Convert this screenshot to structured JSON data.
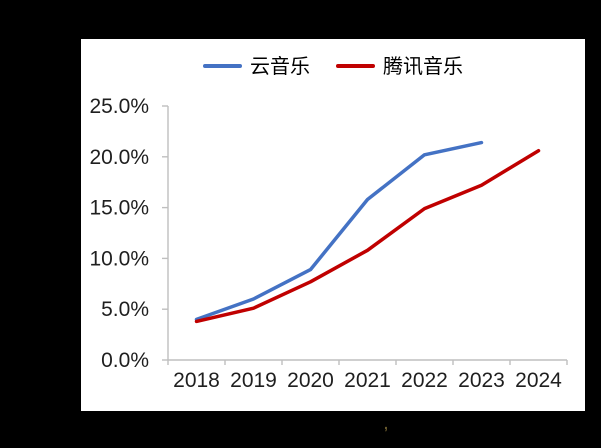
{
  "page": {
    "background_color": "#000000",
    "panel_color": "#FFFFFF"
  },
  "watermark": {
    "glyph": ",",
    "color": "#6A5B2D"
  },
  "chart_data": {
    "type": "line",
    "title": "",
    "categories": [
      "2018",
      "2019",
      "2020",
      "2021",
      "2022",
      "2023",
      "2024"
    ],
    "series": [
      {
        "name": "云音乐",
        "color": "#4472C4",
        "values": [
          4.0,
          6.0,
          8.9,
          15.8,
          20.2,
          21.4,
          null
        ]
      },
      {
        "name": "腾讯音乐",
        "color": "#C00000",
        "values": [
          3.8,
          5.1,
          7.7,
          10.8,
          14.9,
          17.2,
          20.6
        ]
      }
    ],
    "xlabel": "",
    "ylabel": "",
    "y_tick_labels": [
      "0.0%",
      "5.0%",
      "10.0%",
      "15.0%",
      "20.0%",
      "25.0%"
    ],
    "ylim": [
      0,
      25
    ],
    "grid": false,
    "legend_position": "top",
    "axis_color": "#BFBFBF",
    "tick_label_color": "#1F1F1F"
  }
}
